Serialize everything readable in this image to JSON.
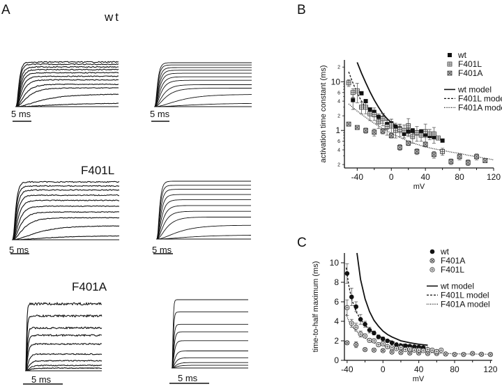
{
  "figure": {
    "panel_a": {
      "letter": "A",
      "rows": [
        {
          "label": "wt",
          "scale_left": "5 ms",
          "scale_right": "5 ms",
          "n_traces": 12,
          "trace_levels": [
            0.0,
            0.08,
            0.28,
            0.42,
            0.5,
            0.6,
            0.68,
            0.76,
            0.83,
            0.89,
            0.95,
            1.0
          ],
          "trace_taus": [
            10,
            8,
            5,
            2.2,
            1.6,
            1.2,
            1.0,
            0.85,
            0.75,
            0.65,
            0.55,
            0.5
          ]
        },
        {
          "label": "F401L",
          "scale_left": "5 ms",
          "scale_right": "5 ms",
          "n_traces": 11,
          "trace_levels": [
            0.0,
            0.07,
            0.24,
            0.38,
            0.48,
            0.58,
            0.68,
            0.77,
            0.86,
            0.93,
            1.0
          ],
          "trace_taus": [
            9,
            7,
            4.5,
            2.0,
            1.4,
            1.1,
            0.9,
            0.75,
            0.65,
            0.55,
            0.5
          ]
        },
        {
          "label": "F401A",
          "scale_left": "5 ms",
          "scale_right": "5 ms",
          "n_traces": 10,
          "trace_levels": [
            0.0,
            0.04,
            0.08,
            0.15,
            0.25,
            0.4,
            0.53,
            0.64,
            0.82,
            1.0
          ],
          "trace_taus": [
            3.5,
            3.0,
            2.5,
            2.0,
            1.6,
            1.2,
            1.0,
            0.8,
            0.6,
            0.45
          ]
        }
      ]
    }
  },
  "chart_data": [
    {
      "panel": "B",
      "type": "scatter",
      "title": "",
      "xlabel": "mV",
      "ylabel": "activation time constant (ms)",
      "yscale": "log",
      "xlim": [
        -55,
        120
      ],
      "ylim": [
        0.17,
        28
      ],
      "xticks": [
        -40,
        0,
        40,
        80,
        120
      ],
      "xtick_labels": [
        "-40",
        "0",
        "40",
        "80",
        "120"
      ],
      "yticks_major": [
        1,
        10
      ],
      "yticks_major_labels": [
        "1",
        "10"
      ],
      "yticks_minor": [
        0.2,
        0.4,
        0.6,
        2,
        4,
        6,
        20
      ],
      "yticks_minor_labels": [
        "2",
        "4",
        "6",
        "2",
        "4",
        "6",
        "2"
      ],
      "legend_position": "top-right",
      "series": [
        {
          "name": "wt",
          "marker": "filled-square",
          "x": [
            -45,
            -35,
            -30,
            -25,
            -20,
            -15,
            -10,
            -5,
            0,
            5,
            10,
            15,
            20,
            25,
            30,
            35,
            40,
            45,
            50,
            60
          ],
          "y": [
            4.2,
            5.8,
            4.0,
            2.7,
            2.4,
            1.9,
            1.8,
            1.35,
            1.4,
            1.2,
            1.1,
            0.85,
            0.95,
            1.0,
            0.9,
            0.95,
            0.82,
            0.77,
            0.73,
            0.62
          ],
          "err": [
            1.5,
            0,
            0,
            0,
            0.5,
            0.3,
            0.4,
            0.3,
            0.3,
            0.2,
            0.2,
            0.15,
            0.15,
            0.1,
            0.1,
            0.1,
            0.1,
            0.05,
            0.05,
            0
          ]
        },
        {
          "name": "F401L",
          "marker": "hatched-square",
          "x": [
            -50,
            -45,
            -40,
            -35,
            -30,
            -25,
            -20,
            -15,
            -10,
            -5,
            0,
            5,
            10,
            15,
            20,
            25,
            30,
            35,
            40,
            45,
            50,
            55,
            60
          ],
          "y": [
            9.5,
            6.0,
            6.5,
            3.0,
            3.0,
            2.2,
            2.1,
            1.5,
            1.75,
            1.2,
            1.3,
            1.0,
            1.05,
            1.0,
            1.25,
            0.75,
            0.9,
            0.8,
            0.95,
            0.85,
            0.85,
            0.7,
            0.37
          ],
          "err": [
            1.5,
            1.2,
            2.8,
            0.8,
            0.8,
            0.6,
            0.5,
            0.4,
            0.5,
            0.4,
            0.4,
            0.3,
            0.3,
            0.3,
            0.5,
            0.2,
            0.3,
            0.2,
            0.4,
            0.2,
            0.3,
            0,
            0.06
          ]
        },
        {
          "name": "F401A",
          "marker": "crossed-square",
          "x": [
            -50,
            -40,
            -30,
            -20,
            -10,
            0,
            10,
            20,
            30,
            40,
            50,
            70,
            80,
            90,
            100,
            110
          ],
          "y": [
            1.35,
            1.15,
            1.0,
            0.92,
            0.97,
            0.78,
            0.45,
            0.55,
            0.37,
            0.52,
            0.32,
            0.23,
            0.29,
            0.22,
            0.29,
            0.24
          ],
          "err": [
            0,
            0,
            0.12,
            0.15,
            0.12,
            0.08,
            0.06,
            0.06,
            0.05,
            0.06,
            0.05,
            0.03,
            0.04,
            0.03,
            0.04,
            0
          ]
        },
        {
          "name": "wt model",
          "line": "solid",
          "x": [
            -40,
            -35,
            -30,
            -25,
            -20,
            -15,
            -10,
            -5,
            0,
            5,
            10,
            15,
            20,
            25,
            30,
            35,
            40,
            45,
            50
          ],
          "y": [
            25,
            15,
            9.5,
            6.2,
            4.2,
            3.0,
            2.2,
            1.75,
            1.45,
            1.25,
            1.1,
            1.0,
            0.95,
            0.9,
            0.87,
            0.84,
            0.82,
            0.8,
            0.78
          ]
        },
        {
          "name": "F401L model",
          "line": "dashed",
          "x": [
            -50,
            -47,
            -44,
            -41,
            -38,
            -35,
            -32,
            -30
          ],
          "y": [
            16,
            11.5,
            8.5,
            6.5,
            5.0,
            4.0,
            3.3,
            3.0
          ]
        },
        {
          "name": "F401A model",
          "line": "dotted",
          "x": [
            -50,
            -40,
            -30,
            -20,
            -10,
            0,
            10,
            20,
            30,
            40,
            50,
            60,
            70,
            80,
            90,
            100,
            110,
            120
          ],
          "y": [
            3.5,
            2.5,
            1.85,
            1.4,
            1.1,
            0.88,
            0.72,
            0.6,
            0.52,
            0.46,
            0.42,
            0.39,
            0.36,
            0.34,
            0.31,
            0.29,
            0.27,
            0.25
          ]
        }
      ]
    },
    {
      "panel": "C",
      "type": "scatter",
      "title": "",
      "xlabel": "mV",
      "ylabel": "time-to-half maximum (ms)",
      "yscale": "linear",
      "xlim": [
        -43,
        122
      ],
      "ylim": [
        0,
        11
      ],
      "xticks": [
        -40,
        0,
        40,
        80,
        120
      ],
      "xtick_labels": [
        "-40",
        "0",
        "40",
        "80",
        "120"
      ],
      "yticks": [
        0,
        2,
        4,
        6,
        8,
        10
      ],
      "ytick_labels": [
        "0",
        "2",
        "4",
        "6",
        "8",
        "10"
      ],
      "legend_position": "top-right",
      "series": [
        {
          "name": "wt",
          "marker": "filled-circle",
          "x": [
            -40,
            -35,
            -30,
            -25,
            -20,
            -15,
            -10,
            -5,
            0,
            5,
            10,
            15,
            20,
            25,
            30,
            35,
            40,
            45
          ],
          "y": [
            8.9,
            6.5,
            5.5,
            4.2,
            3.7,
            3.1,
            2.8,
            2.4,
            2.2,
            2.0,
            1.8,
            1.6,
            1.5,
            1.5,
            1.45,
            1.4,
            1.35,
            1.3
          ],
          "err": [
            1.0,
            0.9,
            0.5,
            0.5,
            0.3,
            0.3,
            0.2,
            0.2,
            0.2,
            0.1,
            0.1,
            0.1,
            0.1,
            0.1,
            0.1,
            0.1,
            0.1,
            0.1
          ]
        },
        {
          "name": "F401A",
          "marker": "crossed-circle",
          "x": [
            -40,
            -30,
            -20,
            -10,
            0,
            10,
            20,
            30,
            40,
            50,
            60,
            70,
            80,
            90,
            100,
            110,
            120
          ],
          "y": [
            1.8,
            1.6,
            1.1,
            1.05,
            1.0,
            0.85,
            0.8,
            0.75,
            0.75,
            0.7,
            0.7,
            0.65,
            0.6,
            0.6,
            0.7,
            0.62,
            0.6
          ],
          "err": [
            0,
            0.3,
            0,
            0,
            0,
            0,
            0,
            0,
            0,
            0,
            0,
            0,
            0,
            0,
            0,
            0,
            0
          ]
        },
        {
          "name": "F401L",
          "marker": "plus-circle",
          "x": [
            -40,
            -35,
            -30,
            -25,
            -20,
            -15,
            -10,
            -5,
            0,
            5,
            10,
            15,
            20,
            25,
            30,
            35,
            40,
            45,
            50,
            55,
            60,
            65
          ],
          "y": [
            5.4,
            3.8,
            3.4,
            2.7,
            2.5,
            2.05,
            2.0,
            1.6,
            1.7,
            1.4,
            1.3,
            1.2,
            1.3,
            1.1,
            1.15,
            1.05,
            1.05,
            1.0,
            1.1,
            1.05,
            0.9,
            1.05
          ],
          "err": [
            0.8,
            0.4,
            0.4,
            0.3,
            0.2,
            0.2,
            0.2,
            0.2,
            0.2,
            0.15,
            0.1,
            0.1,
            0.1,
            0.1,
            0.1,
            0.1,
            0.1,
            0.1,
            0,
            0,
            0,
            0
          ]
        },
        {
          "name": "wt model",
          "line": "solid",
          "x": [
            -29,
            -25,
            -20,
            -15,
            -10,
            -5,
            0,
            5,
            10,
            15,
            20,
            25,
            30,
            35,
            40,
            45,
            50
          ],
          "y": [
            11,
            8.3,
            6.3,
            5.0,
            4.1,
            3.5,
            3.0,
            2.65,
            2.4,
            2.2,
            2.0,
            1.9,
            1.8,
            1.72,
            1.65,
            1.6,
            1.55
          ]
        },
        {
          "name": "F401L model",
          "line": "dashed",
          "x": [
            -41,
            -38,
            -35,
            -30,
            -25,
            -20,
            -15,
            -10,
            -5,
            0,
            5,
            10,
            15,
            20,
            25,
            30,
            35,
            40,
            45,
            50
          ],
          "y": [
            9.5,
            7.6,
            6.3,
            5.0,
            4.2,
            3.6,
            3.15,
            2.8,
            2.5,
            2.3,
            2.1,
            1.95,
            1.8,
            1.7,
            1.6,
            1.55,
            1.5,
            1.45,
            1.4,
            1.35
          ]
        },
        {
          "name": "F401A model",
          "line": "dotted",
          "x": [
            -41,
            -38,
            -35,
            -30,
            -25,
            -20,
            -15,
            -10,
            -5,
            0,
            10,
            20,
            30,
            40,
            50,
            60,
            70,
            80,
            90,
            100,
            110,
            120
          ],
          "y": [
            4.7,
            4.0,
            3.5,
            3.0,
            2.6,
            2.3,
            2.0,
            1.8,
            1.6,
            1.5,
            1.25,
            1.1,
            0.95,
            0.85,
            0.8,
            0.75,
            0.7,
            0.68,
            0.65,
            0.65,
            0.63,
            0.62
          ]
        }
      ]
    }
  ],
  "labels": {
    "panel_b_letter": "B",
    "panel_c_letter": "C"
  }
}
